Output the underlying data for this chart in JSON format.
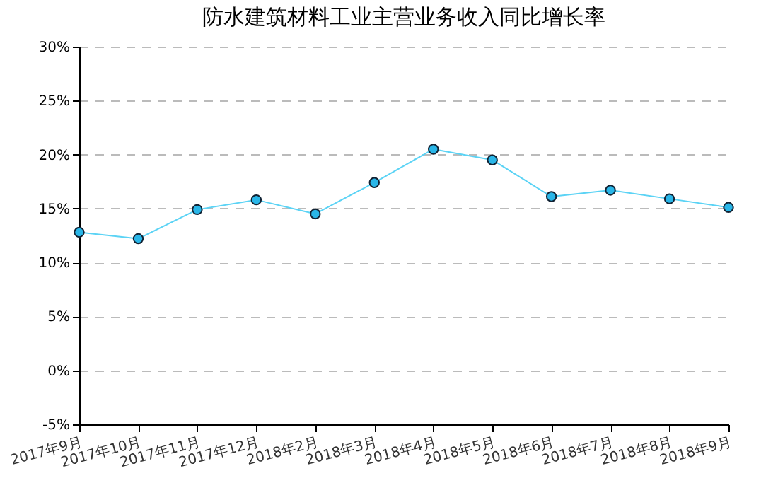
{
  "chart_data": {
    "type": "line",
    "title": "防水建筑材料工业主营业务收入同比增长率",
    "categories": [
      "2017年9月",
      "2017年10月",
      "2017年11月",
      "2017年12月",
      "2018年2月",
      "2018年3月",
      "2018年4月",
      "2018年5月",
      "2018年6月",
      "2018年7月",
      "2018年8月",
      "2018年9月"
    ],
    "series": [
      {
        "color": "#5bd3f5",
        "values": [
          12.8,
          12.2,
          14.9,
          15.8,
          14.5,
          17.4,
          20.5,
          19.5,
          16.1,
          16.7,
          15.9,
          15.1
        ]
      }
    ],
    "ylim": [
      -5,
      30
    ],
    "yticks": [
      {
        "value": -5,
        "label": "-5%"
      },
      {
        "value": 0,
        "label": "0%"
      },
      {
        "value": 5,
        "label": "5%"
      },
      {
        "value": 10,
        "label": "10%"
      },
      {
        "value": 15,
        "label": "15%"
      },
      {
        "value": 20,
        "label": "20%"
      },
      {
        "value": 25,
        "label": "25%"
      },
      {
        "value": 30,
        "label": "30%"
      }
    ],
    "grid": "y",
    "marker": "circle",
    "line_style": "solid"
  }
}
